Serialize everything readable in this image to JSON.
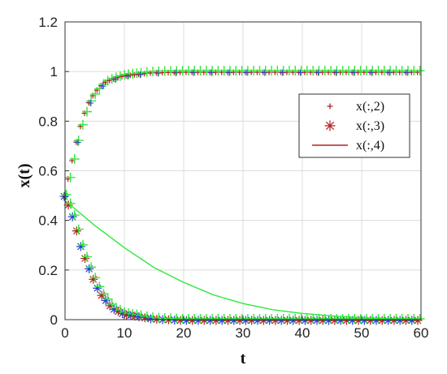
{
  "chart_data": {
    "type": "scatter",
    "xlabel": "t",
    "ylabel": "x(t)",
    "xlim": [
      0,
      60
    ],
    "ylim": [
      0,
      1.2
    ],
    "xticks": [
      "0",
      "10",
      "20",
      "30",
      "40",
      "50",
      "60"
    ],
    "yticks": [
      "0",
      "0.2",
      "0.4",
      "0.6",
      "0.8",
      "1",
      "1.2"
    ],
    "grid": true,
    "legend_position": "right",
    "colors": {
      "red": "#b22222",
      "blue": "#2b3fd6",
      "green": "#2ee83a",
      "grid": "#dcdcdc"
    },
    "legend": [
      {
        "label": "x(:,2)",
        "marker": "plus"
      },
      {
        "label": "x(:,3)",
        "marker": "asterisk"
      },
      {
        "label": "x(:,4)",
        "marker": "line"
      }
    ],
    "series": [
      {
        "x": [
          0,
          1,
          2,
          3,
          4,
          5,
          6,
          7,
          8,
          10,
          15,
          20,
          30,
          40,
          50,
          60
        ],
        "values": [
          0.5,
          0.6,
          0.71,
          0.8,
          0.87,
          0.91,
          0.94,
          0.96,
          0.97,
          0.985,
          0.998,
          1.0,
          1.0,
          1.0,
          1.0,
          1.0
        ]
      },
      {
        "x": [
          0,
          1,
          2,
          3,
          4,
          5,
          6,
          7,
          8,
          10,
          15,
          20,
          30,
          40,
          50,
          60
        ],
        "values": [
          0.5,
          0.45,
          0.37,
          0.28,
          0.22,
          0.16,
          0.11,
          0.08,
          0.05,
          0.025,
          0.005,
          0.0,
          0.0,
          0.0,
          0.0,
          0.0
        ]
      },
      {
        "x": [
          0,
          5,
          10,
          15,
          20,
          25,
          30,
          35,
          40,
          45,
          50,
          55,
          60
        ],
        "values": [
          0.48,
          0.38,
          0.29,
          0.21,
          0.15,
          0.1,
          0.065,
          0.04,
          0.025,
          0.015,
          0.008,
          0.004,
          0.002
        ]
      }
    ]
  }
}
